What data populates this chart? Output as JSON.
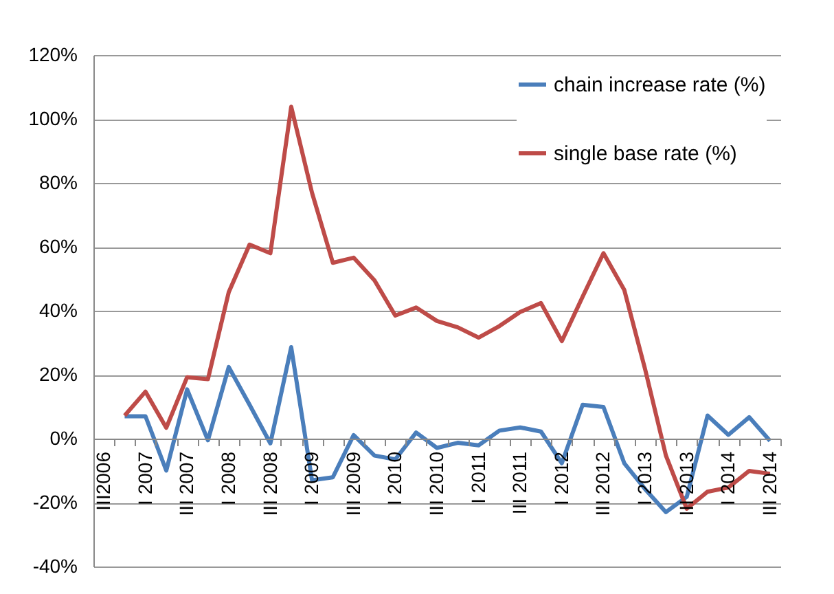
{
  "chart_data": {
    "type": "line",
    "categories": [
      "III2006",
      null,
      "I 2007",
      null,
      "III 2007",
      null,
      "I 2008",
      null,
      "III 2008",
      null,
      "I 2009",
      null,
      "III 2009",
      null,
      "I 2010",
      null,
      "III 2010",
      null,
      "I 2011",
      null,
      "III 2011",
      null,
      "I 2012",
      null,
      "III 2012",
      null,
      "I 2013",
      null,
      "III 2013",
      null,
      "I 2014",
      null,
      "III 2014"
    ],
    "series": [
      {
        "name": "chain increase rate (%)",
        "color": "#4a7ebb",
        "values": [
          null,
          7,
          7,
          -10,
          15.4,
          -0.5,
          22.4,
          10.6,
          -1.5,
          28.6,
          -13,
          -12.1,
          1.1,
          -5.3,
          -6.5,
          1.9,
          -2.9,
          -1.3,
          -2.1,
          2.5,
          3.5,
          2.2,
          -7.7,
          10.6,
          9.9,
          -7.7,
          -15.8,
          -23,
          -18.2,
          7.2,
          1.2,
          6.7,
          -0.7
        ]
      },
      {
        "name": "single base rate (%)",
        "color": "#be4b48",
        "values": [
          null,
          7.2,
          14.7,
          3.4,
          19.2,
          18.6,
          45.8,
          60.7,
          58,
          103.8,
          76.9,
          55,
          56.6,
          49.5,
          38.5,
          41,
          36.8,
          34.8,
          31.6,
          35.2,
          39.6,
          42.4,
          30.5,
          44.4,
          58,
          46.5,
          21.7,
          -5.3,
          -21.9,
          -16.6,
          -15.3,
          -10.1,
          -11
        ]
      }
    ],
    "ylim": [
      -40,
      120
    ],
    "yticks": [
      {
        "value": -40,
        "label": "-40%"
      },
      {
        "value": -20,
        "label": "-20%"
      },
      {
        "value": 0,
        "label": "0%"
      },
      {
        "value": 20,
        "label": "20%"
      },
      {
        "value": 40,
        "label": "40%"
      },
      {
        "value": 60,
        "label": "60%"
      },
      {
        "value": 80,
        "label": "80%"
      },
      {
        "value": 100,
        "label": "100%"
      },
      {
        "value": 120,
        "label": "120%"
      }
    ],
    "grid": "y",
    "legend": "top right",
    "marker": "none",
    "line_style": "solid"
  }
}
